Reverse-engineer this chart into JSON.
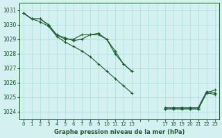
{
  "title": "Graphe pression niveau de la mer (hPa)",
  "bg_color": "#d4f0f0",
  "grid_color": "#aadcdc",
  "line_color": "#1a5c2a",
  "marker_color": "#1a5c2a",
  "ylim": [
    1023.5,
    1031.5
  ],
  "yticks": [
    1024,
    1025,
    1026,
    1027,
    1028,
    1029,
    1030,
    1031
  ],
  "xtick_labels": [
    "0",
    "1",
    "2",
    "3",
    "4",
    "5",
    "6",
    "7",
    "8",
    "9",
    "10",
    "11",
    "12",
    "13",
    "",
    "",
    "",
    "17",
    "18",
    "19",
    "20",
    "21",
    "22",
    "23"
  ],
  "series": [
    [
      1030.8,
      1030.4,
      1030.4,
      1030.0,
      1029.3,
      1029.0,
      1029.0,
      1029.3,
      1029.3,
      1029.3,
      1029.0,
      1028.0,
      1027.3,
      1026.8,
      null,
      null,
      null,
      1024.2,
      1024.2,
      1024.2,
      1024.2,
      1024.2,
      1025.3,
      1025.2
    ],
    [
      1030.8,
      1030.4,
      1030.4,
      1030.0,
      1029.3,
      1029.1,
      1028.9,
      1029.0,
      1029.3,
      1029.4,
      1029.0,
      1028.2,
      1027.3,
      1026.8,
      null,
      null,
      null,
      1024.3,
      1024.3,
      1024.3,
      1024.3,
      1024.3,
      1025.4,
      1025.3
    ],
    [
      1030.8,
      1030.4,
      1030.2,
      1029.9,
      1029.2,
      1028.8,
      1028.5,
      1028.2,
      1027.8,
      1027.3,
      1026.8,
      1026.3,
      1025.8,
      1025.3,
      null,
      null,
      null,
      1024.2,
      1024.2,
      1024.2,
      1024.2,
      1024.2,
      1025.3,
      1025.5
    ]
  ]
}
